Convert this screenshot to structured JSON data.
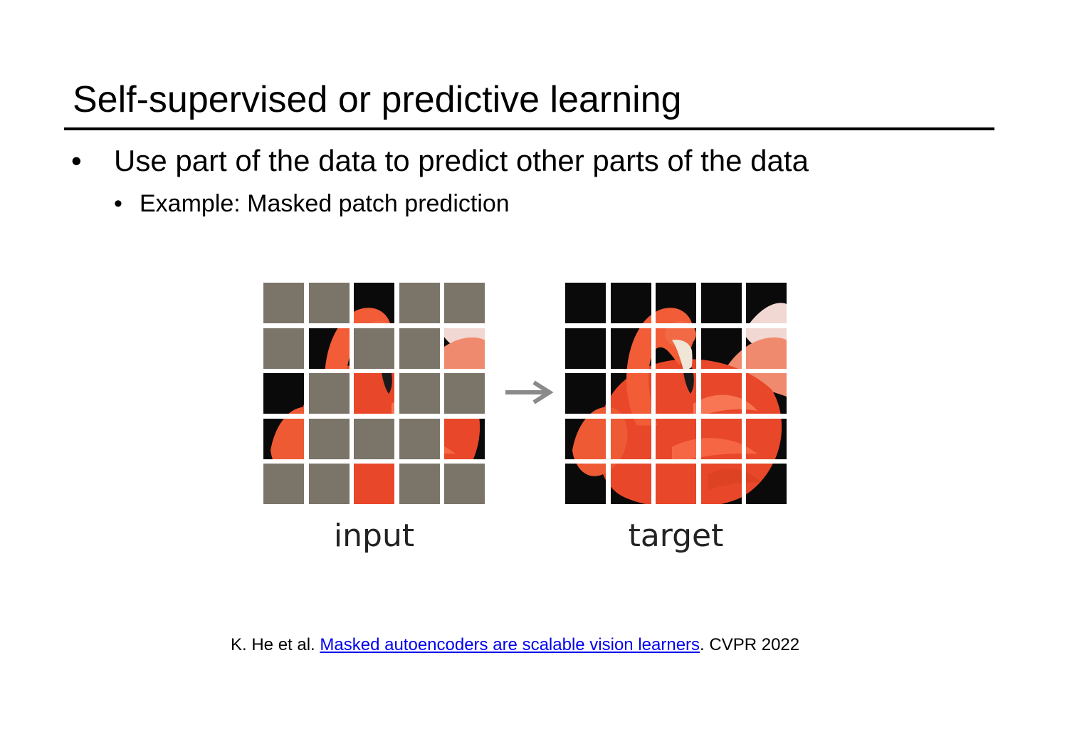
{
  "slide": {
    "title": "Self-supervised or predictive learning",
    "bullets": {
      "level1_marker": "•",
      "level1_text": "Use part of the data to predict other parts of the data",
      "level2_marker": "•",
      "level2_text": "Example: Masked patch prediction"
    }
  },
  "figure": {
    "input_caption": "input",
    "target_caption": "target",
    "mask_color": "#7b7468",
    "image_subject": "flamingo",
    "input_visible_patches": [
      [
        0,
        2
      ],
      [
        1,
        1
      ],
      [
        1,
        4
      ],
      [
        2,
        0
      ],
      [
        2,
        2
      ],
      [
        3,
        0
      ],
      [
        3,
        4
      ],
      [
        4,
        2
      ]
    ],
    "arrow_icon": "right-arrow-icon"
  },
  "citation": {
    "authors": "K. He et al.",
    "link_text": "Masked autoencoders are scalable vision learners",
    "venue": ". CVPR 2022"
  },
  "colors": {
    "link": "#0000ee",
    "flamingo": "#e8472a"
  }
}
